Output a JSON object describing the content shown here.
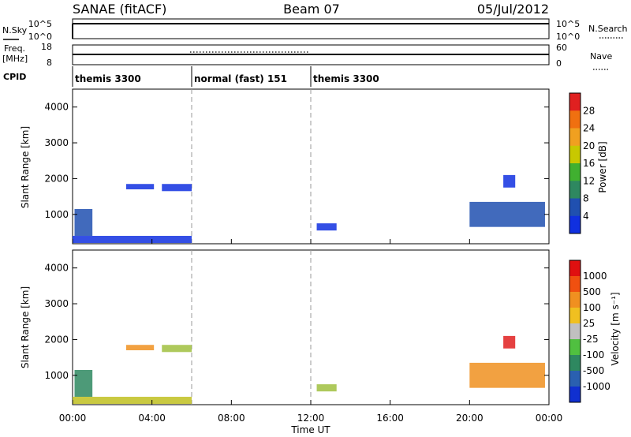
{
  "header": {
    "station": "SANAE (fitACF)",
    "beam": "Beam 07",
    "date": "05/Jul/2012"
  },
  "noise_panel": {
    "left_label": "N.Sky",
    "left_ticks": [
      "10^5",
      "10^0"
    ],
    "right_label": "N.Search",
    "right_ticks": [
      "10^5",
      "10^0"
    ]
  },
  "freq_panel": {
    "left_label": "Freq.",
    "left_unit": "[MHz]",
    "left_ticks": [
      "18",
      "8"
    ],
    "right_label": "Nave",
    "right_ticks": [
      "60",
      "0"
    ],
    "cpid_label": "CPID"
  },
  "cpid_segments": [
    {
      "label": "themis 3300",
      "start_hour": 0,
      "end_hour": 6
    },
    {
      "label": "normal (fast) 151",
      "start_hour": 6,
      "end_hour": 12
    },
    {
      "label": "themis 3300",
      "start_hour": 12,
      "end_hour": 24
    }
  ],
  "chart_data": [
    {
      "type": "heatmap",
      "name": "power",
      "ylabel": "Slant Range [km]",
      "y_ticks": [
        "1000",
        "2000",
        "3000",
        "4000"
      ],
      "ylim": [
        180,
        4500
      ],
      "xlim": [
        0,
        24
      ],
      "colorbar": {
        "label": "Power [dB]",
        "ticks": [
          "4",
          "8",
          "12",
          "16",
          "20",
          "24",
          "28"
        ],
        "colors": [
          "#1030e0",
          "#2050b0",
          "#2e8860",
          "#40b030",
          "#c8c800",
          "#f0a020",
          "#f07010",
          "#e02020"
        ]
      },
      "echo_regions": [
        {
          "t0": 0.1,
          "t1": 1.0,
          "r0": 400,
          "r1": 1150,
          "color": "#2050b0"
        },
        {
          "t0": 0.0,
          "t1": 6.0,
          "r0": 200,
          "r1": 400,
          "color": "#1030e0"
        },
        {
          "t0": 2.7,
          "t1": 4.1,
          "r0": 1700,
          "r1": 1850,
          "color": "#1030e0"
        },
        {
          "t0": 4.5,
          "t1": 6.0,
          "r0": 1650,
          "r1": 1850,
          "color": "#1030e0"
        },
        {
          "t0": 12.3,
          "t1": 13.3,
          "r0": 550,
          "r1": 750,
          "color": "#1030e0"
        },
        {
          "t0": 20.0,
          "t1": 23.8,
          "r0": 650,
          "r1": 1350,
          "color": "#2050b0"
        },
        {
          "t0": 21.7,
          "t1": 22.3,
          "r0": 1750,
          "r1": 2100,
          "color": "#1030e0"
        }
      ]
    },
    {
      "type": "heatmap",
      "name": "velocity",
      "ylabel": "Slant Range [km]",
      "y_ticks": [
        "1000",
        "2000",
        "3000",
        "4000"
      ],
      "ylim": [
        180,
        4500
      ],
      "xlim": [
        0,
        24
      ],
      "xlabel": "Time UT",
      "x_ticks": [
        "00:00",
        "04:00",
        "08:00",
        "12:00",
        "16:00",
        "20:00",
        "00:00"
      ],
      "colorbar": {
        "label": "Velocity [m s⁻¹]",
        "ticks": [
          "1000",
          "500",
          "100",
          "25",
          "-25",
          "-100",
          "-500",
          "-1000"
        ],
        "colors": [
          "#1030d0",
          "#2a60b0",
          "#2e8860",
          "#50c040",
          "#c0c0c0",
          "#f0c020",
          "#f09020",
          "#f05010",
          "#e01010"
        ]
      },
      "echo_regions": [
        {
          "t0": 0.1,
          "t1": 1.0,
          "r0": 400,
          "r1": 1150,
          "color": "#2e8860"
        },
        {
          "t0": 0.0,
          "t1": 6.0,
          "r0": 200,
          "r1": 400,
          "color": "#c0c020"
        },
        {
          "t0": 2.7,
          "t1": 4.1,
          "r0": 1700,
          "r1": 1850,
          "color": "#f09020"
        },
        {
          "t0": 4.5,
          "t1": 6.0,
          "r0": 1650,
          "r1": 1850,
          "color": "#a0c040"
        },
        {
          "t0": 12.3,
          "t1": 13.3,
          "r0": 550,
          "r1": 750,
          "color": "#a0c040"
        },
        {
          "t0": 20.0,
          "t1": 23.8,
          "r0": 650,
          "r1": 1350,
          "color": "#f09020"
        },
        {
          "t0": 21.7,
          "t1": 22.3,
          "r0": 1750,
          "r1": 2100,
          "color": "#e02020"
        }
      ]
    }
  ]
}
